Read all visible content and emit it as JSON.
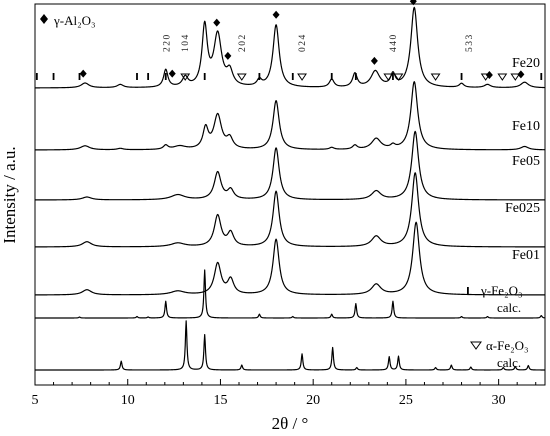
{
  "chart_data": {
    "type": "line",
    "xlabel": "2θ / °",
    "ylabel": "Intensity / a.u.",
    "xlim": [
      5,
      32.5
    ],
    "xticks": [
      5,
      10,
      15,
      20,
      25,
      30
    ],
    "legend": {
      "gamma_al2o3": "γ-Al₂O₃",
      "gamma_fe2o3": "γ-Fe₂O₃",
      "alpha_fe2o3": "α-Fe₂O₃",
      "calc": "calc."
    },
    "hkl_labels": [
      {
        "text": "220",
        "x": 12.1
      },
      {
        "text": "104",
        "x": 13.1
      },
      {
        "text": "202",
        "x": 16.15
      },
      {
        "text": "024",
        "x": 19.4
      },
      {
        "text": "440",
        "x": 24.3
      },
      {
        "text": "533",
        "x": 28.4
      }
    ],
    "markers": {
      "gamma_al2o3": [
        7.6,
        12.4,
        14.8,
        15.4,
        18.0,
        23.3,
        25.4,
        29.5,
        31.2
      ],
      "gamma_fe2o3": [
        5.1,
        6.0,
        7.4,
        10.5,
        11.1,
        12.05,
        14.15,
        17.1,
        18.9,
        21.0,
        22.3,
        24.3,
        28.0,
        32.3
      ],
      "alpha_fe2o3": [
        13.1,
        16.15,
        19.4,
        24.05,
        24.6,
        26.6,
        29.3,
        30.2,
        30.9
      ]
    },
    "series": [
      {
        "name": "Fe20",
        "peaks": [
          [
            7.7,
            0.06,
            0.25
          ],
          [
            9.6,
            0.04,
            0.2
          ],
          [
            12.05,
            0.22,
            0.14
          ],
          [
            13.1,
            0.12,
            0.18
          ],
          [
            14.15,
            0.75,
            0.17
          ],
          [
            14.85,
            0.65,
            0.25
          ],
          [
            15.5,
            0.18,
            0.2
          ],
          [
            17.1,
            0.08,
            0.15
          ],
          [
            18.0,
            0.78,
            0.2
          ],
          [
            21.0,
            0.1,
            0.15
          ],
          [
            22.25,
            0.17,
            0.15
          ],
          [
            23.35,
            0.2,
            0.28
          ],
          [
            24.3,
            0.15,
            0.15
          ],
          [
            25.45,
            1.0,
            0.22
          ],
          [
            28.0,
            0.05,
            0.15
          ],
          [
            29.4,
            0.04,
            0.2
          ],
          [
            31.4,
            0.07,
            0.25
          ]
        ]
      },
      {
        "name": "Fe10",
        "peaks": [
          [
            7.7,
            0.06,
            0.3
          ],
          [
            9.6,
            0.02,
            0.2
          ],
          [
            12.05,
            0.06,
            0.15
          ],
          [
            12.8,
            0.05,
            0.4
          ],
          [
            14.2,
            0.3,
            0.17
          ],
          [
            14.85,
            0.5,
            0.25
          ],
          [
            15.5,
            0.15,
            0.2
          ],
          [
            18.0,
            0.72,
            0.2
          ],
          [
            21.0,
            0.03,
            0.15
          ],
          [
            22.25,
            0.06,
            0.15
          ],
          [
            23.4,
            0.16,
            0.3
          ],
          [
            24.3,
            0.05,
            0.15
          ],
          [
            25.45,
            1.0,
            0.22
          ],
          [
            31.4,
            0.05,
            0.25
          ]
        ]
      },
      {
        "name": "Fe05",
        "peaks": [
          [
            7.8,
            0.04,
            0.3
          ],
          [
            12.7,
            0.07,
            0.45
          ],
          [
            14.85,
            0.38,
            0.22
          ],
          [
            15.55,
            0.13,
            0.2
          ],
          [
            18.0,
            0.72,
            0.2
          ],
          [
            23.4,
            0.12,
            0.3
          ],
          [
            25.5,
            0.95,
            0.22
          ]
        ]
      },
      {
        "name": "Fe025",
        "peaks": [
          [
            7.8,
            0.07,
            0.3
          ],
          [
            12.7,
            0.05,
            0.45
          ],
          [
            14.85,
            0.42,
            0.22
          ],
          [
            15.55,
            0.18,
            0.2
          ],
          [
            18.0,
            0.75,
            0.2
          ],
          [
            23.4,
            0.14,
            0.3
          ],
          [
            25.5,
            1.0,
            0.22
          ]
        ]
      },
      {
        "name": "Fe01",
        "peaks": [
          [
            7.8,
            0.07,
            0.3
          ],
          [
            12.7,
            0.05,
            0.45
          ],
          [
            14.85,
            0.42,
            0.22
          ],
          [
            15.55,
            0.2,
            0.2
          ],
          [
            18.0,
            0.75,
            0.2
          ],
          [
            23.4,
            0.14,
            0.3
          ],
          [
            25.55,
            0.98,
            0.22
          ]
        ]
      },
      {
        "name": "γ-Fe₂O₃ calc.",
        "peaks": [
          [
            7.4,
            0.02,
            0.05
          ],
          [
            10.5,
            0.03,
            0.05
          ],
          [
            11.1,
            0.02,
            0.05
          ],
          [
            12.05,
            0.35,
            0.05
          ],
          [
            14.15,
            1.0,
            0.05
          ],
          [
            17.1,
            0.08,
            0.05
          ],
          [
            18.9,
            0.03,
            0.05
          ],
          [
            21.0,
            0.08,
            0.05
          ],
          [
            22.3,
            0.3,
            0.05
          ],
          [
            24.3,
            0.35,
            0.05
          ],
          [
            28.0,
            0.03,
            0.05
          ],
          [
            29.4,
            0.03,
            0.05
          ],
          [
            32.3,
            0.05,
            0.05
          ]
        ]
      },
      {
        "name": "α-Fe₂O₃ calc.",
        "peaks": [
          [
            9.65,
            0.18,
            0.05
          ],
          [
            13.15,
            1.0,
            0.05
          ],
          [
            14.15,
            0.72,
            0.05
          ],
          [
            16.15,
            0.1,
            0.05
          ],
          [
            19.4,
            0.33,
            0.05
          ],
          [
            21.05,
            0.46,
            0.05
          ],
          [
            22.35,
            0.05,
            0.05
          ],
          [
            24.1,
            0.27,
            0.05
          ],
          [
            24.6,
            0.28,
            0.05
          ],
          [
            26.6,
            0.05,
            0.05
          ],
          [
            27.45,
            0.1,
            0.05
          ],
          [
            28.5,
            0.06,
            0.05
          ],
          [
            30.25,
            0.05,
            0.05
          ],
          [
            30.9,
            0.07,
            0.05
          ],
          [
            31.6,
            0.09,
            0.05
          ]
        ]
      }
    ]
  }
}
